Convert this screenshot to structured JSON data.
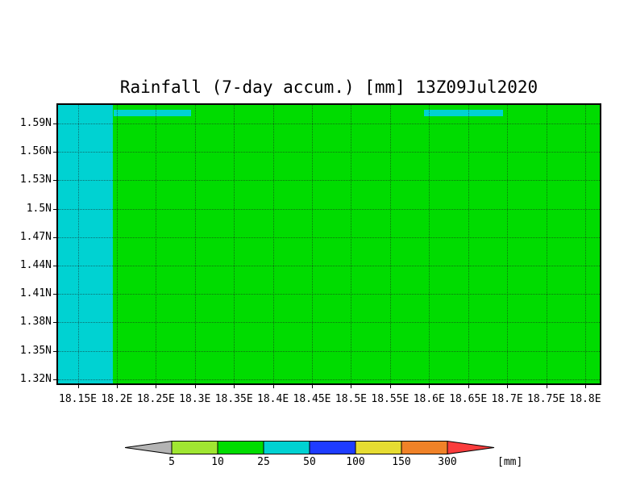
{
  "chart_data": {
    "type": "heatmap",
    "title": "Rainfall (7-day accum.) [mm] 13Z09Jul2020",
    "x_ticks": [
      "18.15E",
      "18.2E",
      "18.25E",
      "18.3E",
      "18.35E",
      "18.4E",
      "18.45E",
      "18.5E",
      "18.55E",
      "18.6E",
      "18.65E",
      "18.7E",
      "18.75E",
      "18.8E"
    ],
    "y_ticks": [
      "1.59N",
      "1.56N",
      "1.53N",
      "1.5N",
      "1.47N",
      "1.44N",
      "1.41N",
      "1.38N",
      "1.35N",
      "1.32N"
    ],
    "xlabel": "",
    "ylabel": "",
    "grid": "dotted",
    "colors": {
      "map_fill": "#00dc00",
      "band_fill": "#00d2d2",
      "frame": "#000000",
      "background": "#ffffff"
    },
    "regions": [
      {
        "name": "main-area",
        "value_range_mm": "10-25",
        "color": "#00dc00"
      },
      {
        "name": "west-column-18.15E-18.2E-full-height",
        "value_range_mm": "25-50",
        "color": "#00d2d2"
      },
      {
        "name": "north-band-18.2E-18.3E",
        "value_range_mm": "25-50",
        "color": "#00d2d2"
      },
      {
        "name": "north-band-18.6E-18.7E",
        "value_range_mm": "25-50",
        "color": "#00d2d2"
      }
    ],
    "legend": {
      "type": "colorbar",
      "boundary_labels": [
        "5",
        "10",
        "25",
        "50",
        "100",
        "150",
        "300"
      ],
      "unit_label": "[mm]",
      "segment_colors": [
        "#b4b4b4",
        "#a0e632",
        "#00dc00",
        "#00d2d2",
        "#1e3cff",
        "#e6dc32",
        "#f08228",
        "#fa3c3c"
      ],
      "arrow_left": true,
      "arrow_right": true
    }
  }
}
